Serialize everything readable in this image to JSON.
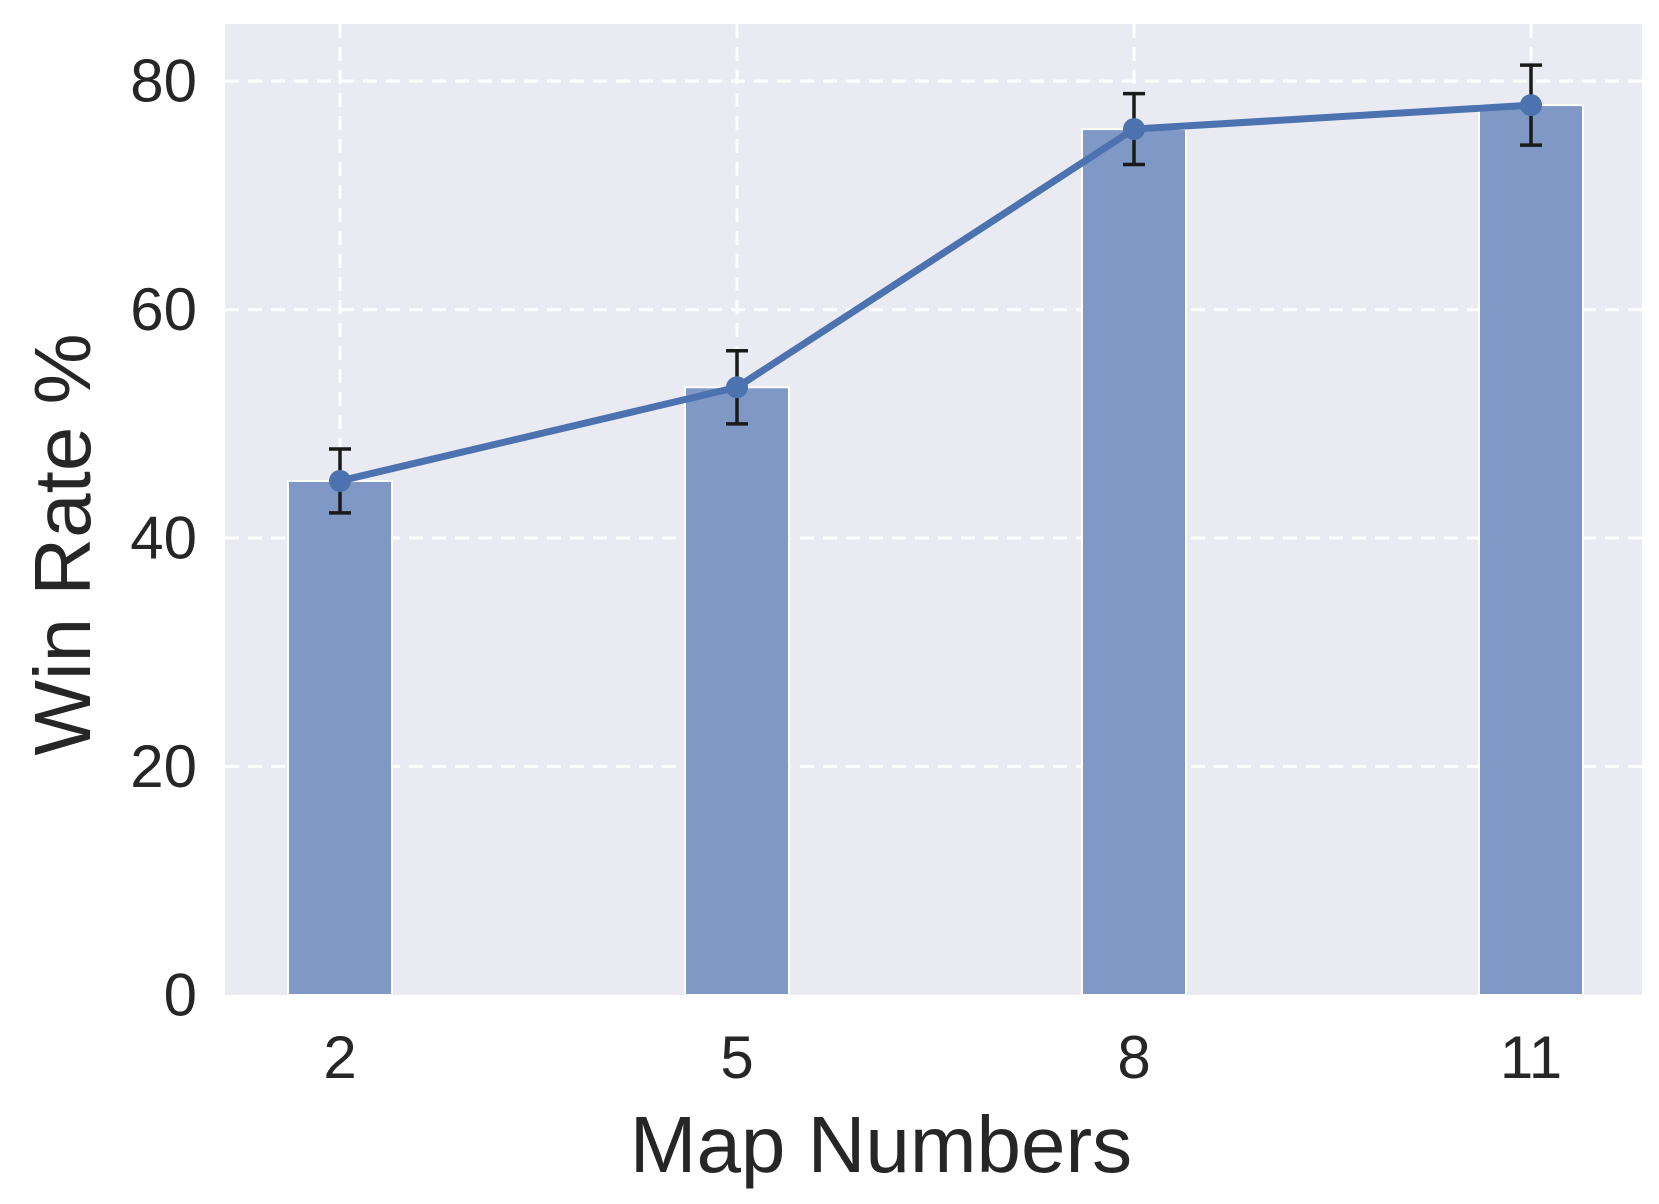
{
  "chart_data": {
    "type": "bar",
    "categories": [
      "2",
      "5",
      "8",
      "11"
    ],
    "series": [
      {
        "values": [
          45,
          53.2,
          75.8,
          77.9
        ],
        "error": [
          2.8,
          3.2,
          3.1,
          3.5
        ],
        "bar_color": "#7f98c6",
        "line_color": "#4c72b0"
      }
    ],
    "xlabel": "Map Numbers",
    "ylabel": "Win Rate %",
    "ylim": [
      0,
      85
    ],
    "yticks": [
      0,
      20,
      40,
      60,
      80
    ],
    "grid": true,
    "background": "#eaeaf2",
    "legend": "none"
  }
}
